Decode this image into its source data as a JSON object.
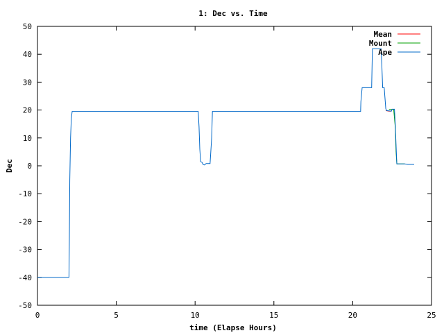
{
  "chart_data": {
    "type": "line",
    "title": "1: Dec vs. Time",
    "xlabel": "time (Elapse Hours)",
    "ylabel": "Dec",
    "xlim": [
      0,
      25
    ],
    "ylim": [
      -50,
      50
    ],
    "xticks": [
      0,
      5,
      10,
      15,
      20,
      25
    ],
    "yticks": [
      -50,
      -40,
      -30,
      -20,
      -10,
      0,
      10,
      20,
      30,
      40,
      50
    ],
    "grid": false,
    "legend_position": "top-right",
    "series": [
      {
        "name": "Mean",
        "color": "#ff0000",
        "points": [
          [
            22.1,
            19.8
          ],
          [
            22.3,
            19.6
          ],
          [
            22.45,
            19.6
          ]
        ]
      },
      {
        "name": "Mount",
        "color": "#00a000",
        "points": [
          [
            22.3,
            20.2
          ],
          [
            22.6,
            20.2
          ],
          [
            22.7,
            14.0
          ],
          [
            22.75,
            5.0
          ],
          [
            22.8,
            0.7
          ],
          [
            23.3,
            0.7
          ]
        ]
      },
      {
        "name": "Ape",
        "color": "#0068c8",
        "points": [
          [
            0,
            -40
          ],
          [
            2.0,
            -40
          ],
          [
            2.02,
            -28
          ],
          [
            2.05,
            -5
          ],
          [
            2.1,
            10
          ],
          [
            2.15,
            17
          ],
          [
            2.2,
            19.5
          ],
          [
            10.2,
            19.5
          ],
          [
            10.25,
            14
          ],
          [
            10.3,
            6
          ],
          [
            10.35,
            1.5
          ],
          [
            10.45,
            1.2
          ],
          [
            10.5,
            0.5
          ],
          [
            10.6,
            0.3
          ],
          [
            10.7,
            0.8
          ],
          [
            10.95,
            0.8
          ],
          [
            11.05,
            10
          ],
          [
            11.1,
            19.5
          ],
          [
            20.5,
            19.5
          ],
          [
            20.52,
            23
          ],
          [
            20.6,
            28
          ],
          [
            21.2,
            28
          ],
          [
            21.25,
            42
          ],
          [
            21.8,
            42
          ],
          [
            21.85,
            36
          ],
          [
            21.9,
            28
          ],
          [
            22.0,
            28
          ],
          [
            22.1,
            20.5
          ],
          [
            22.15,
            19.8
          ],
          [
            22.45,
            19.6
          ],
          [
            22.5,
            20.3
          ],
          [
            22.65,
            20.3
          ],
          [
            22.7,
            15
          ],
          [
            22.8,
            0.7
          ],
          [
            23.3,
            0.7
          ],
          [
            23.5,
            0.5
          ],
          [
            23.9,
            0.5
          ]
        ]
      }
    ]
  }
}
